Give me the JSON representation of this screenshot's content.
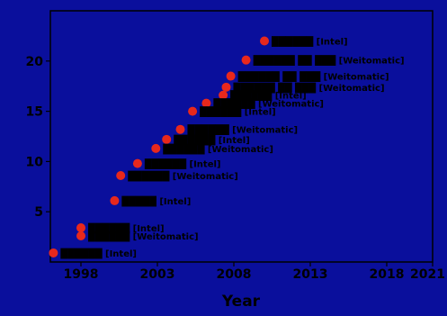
{
  "chart_data": {
    "type": "scatter",
    "title": "",
    "xlabel": "Year",
    "ylabel": "",
    "xlim": [
      1996,
      2021
    ],
    "ylim": [
      0,
      25
    ],
    "x_ticks": [
      1998,
      2003,
      2008,
      2013,
      2018,
      2021
    ],
    "x_tick_labels": [
      "1998",
      "2003",
      "2008",
      "2013",
      "2018",
      "2021"
    ],
    "y_ticks": [
      5,
      10,
      15,
      20
    ],
    "y_tick_labels": [
      "5",
      "10",
      "15",
      "20"
    ],
    "grid": false,
    "legend": "none",
    "marker_color": "#e8281c",
    "points": [
      {
        "x": 2010,
        "y": 22.0,
        "label": "██████ [Intel]"
      },
      {
        "x": 2008.8,
        "y": 20.1,
        "label": "██████ ██ ███ [Weitomatic]"
      },
      {
        "x": 2007.8,
        "y": 18.5,
        "label": "██████ ██ ███ [Weitomatic]"
      },
      {
        "x": 2007.5,
        "y": 17.4,
        "label": "██████ ██ ███ [Weitomatic]"
      },
      {
        "x": 2007.3,
        "y": 16.6,
        "label": "██████ [Intel]"
      },
      {
        "x": 2006.2,
        "y": 15.8,
        "label": "██████ [Weitomatic]"
      },
      {
        "x": 2005.3,
        "y": 15.0,
        "label": "██████ [Intel]"
      },
      {
        "x": 2004.5,
        "y": 13.2,
        "label": "██████ [Weitomatic]"
      },
      {
        "x": 2003.6,
        "y": 12.2,
        "label": "██████ [Intel]"
      },
      {
        "x": 2002.9,
        "y": 11.3,
        "label": "██████ [Weitomatic]"
      },
      {
        "x": 2001.7,
        "y": 9.8,
        "label": "██████ [Intel]"
      },
      {
        "x": 2000.6,
        "y": 8.6,
        "label": "██████ [Weitomatic]"
      },
      {
        "x": 2000.2,
        "y": 6.1,
        "label": "█████ [Intel]"
      },
      {
        "x": 1998.0,
        "y": 3.4,
        "label": "██████ [Intel]"
      },
      {
        "x": 1998.0,
        "y": 2.6,
        "label": "██████ [Weitomatic]"
      },
      {
        "x": 1996.2,
        "y": 0.9,
        "label": "██████ [Intel]"
      }
    ]
  }
}
